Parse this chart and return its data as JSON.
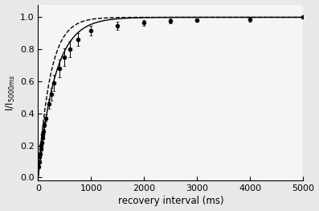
{
  "title": "",
  "xlabel": "recovery interval (ms)",
  "ylabel": "I/I 5000ms",
  "xlim": [
    0,
    5000
  ],
  "ylim": [
    -0.02,
    1.08
  ],
  "xticks": [
    0,
    1000,
    2000,
    3000,
    4000,
    5000
  ],
  "yticks": [
    0.0,
    0.2,
    0.4,
    0.6,
    0.8,
    1.0
  ],
  "data_x": [
    10,
    20,
    30,
    40,
    50,
    60,
    70,
    80,
    90,
    100,
    120,
    150,
    200,
    250,
    300,
    400,
    500,
    600,
    750,
    1000,
    1500,
    2000,
    2500,
    3000,
    4000,
    5000
  ],
  "data_y": [
    0.07,
    0.1,
    0.13,
    0.15,
    0.18,
    0.2,
    0.22,
    0.25,
    0.27,
    0.29,
    0.33,
    0.37,
    0.46,
    0.52,
    0.59,
    0.68,
    0.75,
    0.8,
    0.86,
    0.915,
    0.945,
    0.965,
    0.975,
    0.982,
    0.988,
    1.0
  ],
  "data_yerr": [
    0.01,
    0.01,
    0.01,
    0.01,
    0.01,
    0.01,
    0.01,
    0.01,
    0.012,
    0.015,
    0.018,
    0.022,
    0.03,
    0.04,
    0.05,
    0.055,
    0.055,
    0.05,
    0.04,
    0.03,
    0.025,
    0.018,
    0.015,
    0.012,
    0.015,
    0.0
  ],
  "solid_tau": 320,
  "dashed_tau": 230,
  "line_color": "#000000",
  "dot_color": "#000000",
  "background_color": "#e8e8e8",
  "plot_bg_color": "#f5f5f5",
  "figsize": [
    3.97,
    2.62
  ],
  "dpi": 100
}
